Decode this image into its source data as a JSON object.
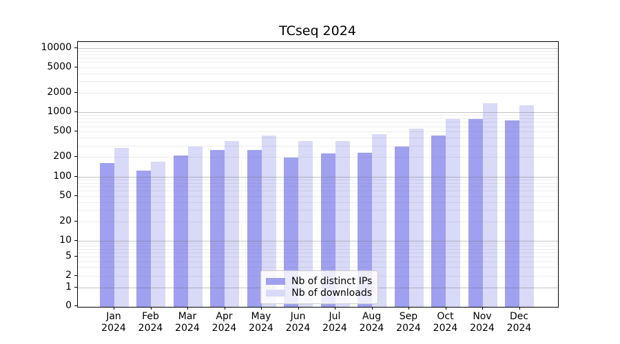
{
  "title": "TCseq 2024",
  "colors": {
    "bar_ips": "#a0a0f0",
    "bar_downloads": "#d9d9f8",
    "grid_major": "#b8b8b8",
    "grid_minor": "#ececec",
    "axis": "#000000",
    "background": "#ffffff",
    "legend_border": "#cccccc"
  },
  "chart_data": {
    "type": "bar",
    "title": "TCseq 2024",
    "categories": [
      "Jan 2024",
      "Feb 2024",
      "Mar 2024",
      "Apr 2024",
      "May 2024",
      "Jun 2024",
      "Jul 2024",
      "Aug 2024",
      "Sep 2024",
      "Oct 2024",
      "Nov 2024",
      "Dec 2024"
    ],
    "series": [
      {
        "name": "Nb of distinct IPs",
        "color": "#a0a0f0",
        "values": [
          160,
          123,
          210,
          258,
          258,
          198,
          230,
          236,
          290,
          437,
          780,
          748
        ]
      },
      {
        "name": "Nb of downloads",
        "color": "#d9d9f8",
        "values": [
          280,
          168,
          290,
          360,
          428,
          358,
          360,
          452,
          560,
          790,
          1380,
          1278
        ]
      }
    ],
    "xlabel": "",
    "ylabel": "",
    "yscale": "symlog",
    "y_ticks": [
      0,
      1,
      2,
      5,
      10,
      20,
      50,
      100,
      200,
      500,
      1000,
      2000,
      5000,
      10000
    ],
    "ylim": [
      0,
      12700
    ],
    "grid": "both",
    "grid_on_top_of_bars": true,
    "legend_position": "lower center"
  }
}
